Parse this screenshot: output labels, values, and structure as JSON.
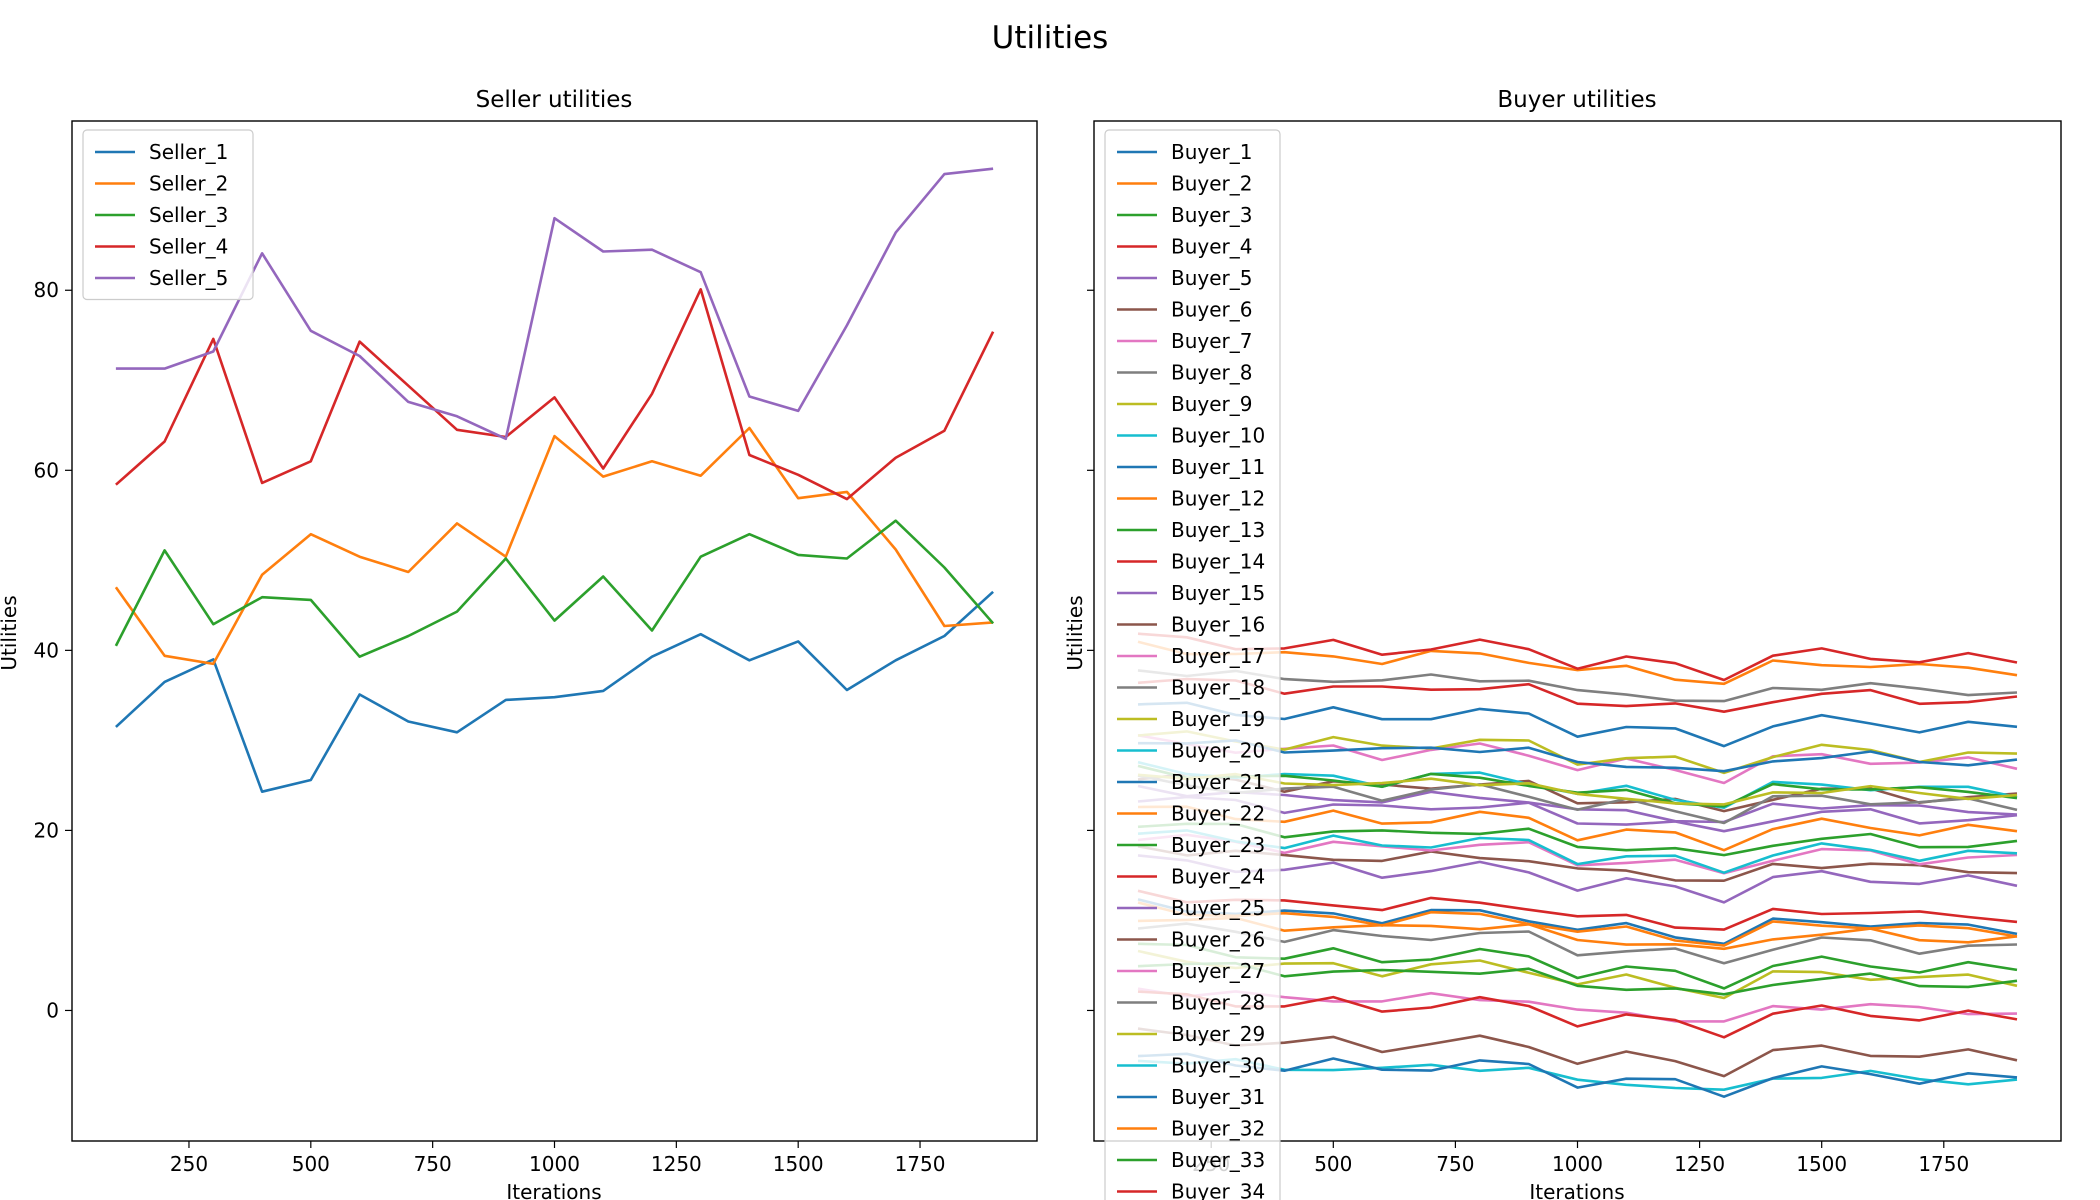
{
  "figure": {
    "suptitle": "Utilities"
  },
  "chart_data": [
    {
      "type": "line",
      "title": "Seller utilities",
      "xlabel": "Iterations",
      "ylabel": "Utilities",
      "xlim": [
        10,
        1990
      ],
      "ylim": [
        -14.5,
        98.8
      ],
      "xticks": [
        250,
        500,
        750,
        1000,
        1250,
        1500,
        1750
      ],
      "yticks": [
        0,
        20,
        40,
        60,
        80
      ],
      "legend": "upper-left",
      "x": [
        100,
        200,
        300,
        400,
        500,
        600,
        700,
        800,
        900,
        1000,
        1100,
        1200,
        1300,
        1400,
        1500,
        1600,
        1700,
        1800,
        1900
      ],
      "series": [
        {
          "name": "Seller_1",
          "color": "#1f77b4",
          "values": [
            31.5,
            36.5,
            39.0,
            24.3,
            25.6,
            35.1,
            32.1,
            30.9,
            34.5,
            34.8,
            35.5,
            39.3,
            41.8,
            38.9,
            41.0,
            35.6,
            38.9,
            41.6,
            46.5
          ]
        },
        {
          "name": "Seller_2",
          "color": "#ff7f0e",
          "values": [
            47.0,
            39.4,
            38.5,
            48.4,
            52.9,
            50.4,
            48.7,
            54.1,
            50.4,
            63.8,
            59.3,
            61.0,
            59.4,
            64.7,
            56.9,
            57.6,
            51.2,
            42.7,
            43.1
          ]
        },
        {
          "name": "Seller_3",
          "color": "#2ca02c",
          "values": [
            40.5,
            51.1,
            42.9,
            45.9,
            45.6,
            39.3,
            41.6,
            44.3,
            50.2,
            43.3,
            48.2,
            42.2,
            50.4,
            52.9,
            50.6,
            50.2,
            54.4,
            49.2,
            43.0
          ]
        },
        {
          "name": "Seller_4",
          "color": "#d62728",
          "values": [
            58.4,
            63.2,
            74.6,
            58.6,
            61.0,
            74.3,
            69.4,
            64.5,
            63.7,
            68.1,
            60.2,
            68.5,
            80.1,
            61.7,
            59.5,
            56.8,
            61.4,
            64.4,
            75.4
          ]
        },
        {
          "name": "Seller_5",
          "color": "#9467bd",
          "values": [
            71.3,
            71.3,
            73.2,
            84.1,
            75.5,
            72.7,
            67.6,
            66.0,
            63.5,
            88.0,
            84.3,
            84.5,
            82.0,
            68.2,
            66.6,
            76.1,
            86.4,
            92.9,
            93.5
          ]
        }
      ]
    },
    {
      "type": "line",
      "title": "Buyer utilities",
      "xlabel": "Iterations",
      "ylabel": "Utilities",
      "xlim": [
        10,
        1990
      ],
      "ylim": [
        -14.5,
        98.8
      ],
      "xticks": [
        250,
        500,
        750,
        1000,
        1250,
        1500,
        1750
      ],
      "yticks": [
        0,
        20,
        40,
        60,
        80
      ],
      "legend": "upper-left",
      "x": [
        100,
        200,
        300,
        400,
        500,
        600,
        700,
        800,
        900,
        1000,
        1100,
        1200,
        1300,
        1400,
        1500,
        1600,
        1700,
        1800,
        1900
      ],
      "series": [
        {
          "name": "Buyer_1",
          "color": "#1f77b4",
          "base": 34.0
        },
        {
          "name": "Buyer_2",
          "color": "#ff7f0e",
          "base": 40.5
        },
        {
          "name": "Buyer_3",
          "color": "#2ca02c",
          "base": 21.0
        },
        {
          "name": "Buyer_4",
          "color": "#d62728",
          "base": 41.5
        },
        {
          "name": "Buyer_5",
          "color": "#9467bd",
          "base": 24.8
        },
        {
          "name": "Buyer_6",
          "color": "#8c564b",
          "base": 26.2
        },
        {
          "name": "Buyer_7",
          "color": "#e377c2",
          "base": 30.0
        },
        {
          "name": "Buyer_8",
          "color": "#7f7f7f",
          "base": 38.0
        },
        {
          "name": "Buyer_9",
          "color": "#bcbd22",
          "base": 30.8
        },
        {
          "name": "Buyer_10",
          "color": "#17becf",
          "base": 27.0
        },
        {
          "name": "Buyer_11",
          "color": "#1f77b4",
          "base": 30.2
        },
        {
          "name": "Buyer_12",
          "color": "#ff7f0e",
          "base": 22.5
        },
        {
          "name": "Buyer_13",
          "color": "#2ca02c",
          "base": 26.8
        },
        {
          "name": "Buyer_14",
          "color": "#d62728",
          "base": 37.0
        },
        {
          "name": "Buyer_15",
          "color": "#9467bd",
          "base": 16.8
        },
        {
          "name": "Buyer_16",
          "color": "#8c564b",
          "base": 18.2
        },
        {
          "name": "Buyer_17",
          "color": "#e377c2",
          "base": 19.4
        },
        {
          "name": "Buyer_18",
          "color": "#7f7f7f",
          "base": 25.5
        },
        {
          "name": "Buyer_19",
          "color": "#bcbd22",
          "base": 26.5
        },
        {
          "name": "Buyer_20",
          "color": "#17becf",
          "base": 19.8
        },
        {
          "name": "Buyer_21",
          "color": "#1f77b4",
          "base": 11.8
        },
        {
          "name": "Buyer_22",
          "color": "#ff7f0e",
          "base": 10.5
        },
        {
          "name": "Buyer_23",
          "color": "#2ca02c",
          "base": 7.2
        },
        {
          "name": "Buyer_24",
          "color": "#d62728",
          "base": 13.0
        },
        {
          "name": "Buyer_25",
          "color": "#9467bd",
          "base": 23.8
        },
        {
          "name": "Buyer_26",
          "color": "#8c564b",
          "base": -2.5
        },
        {
          "name": "Buyer_27",
          "color": "#e377c2",
          "base": 2.5
        },
        {
          "name": "Buyer_28",
          "color": "#7f7f7f",
          "base": 9.5
        },
        {
          "name": "Buyer_29",
          "color": "#bcbd22",
          "base": 6.0
        },
        {
          "name": "Buyer_30",
          "color": "#17becf",
          "base": -5.2
        },
        {
          "name": "Buyer_31",
          "color": "#1f77b4",
          "base": -5.0
        },
        {
          "name": "Buyer_32",
          "color": "#ff7f0e",
          "base": 11.5
        },
        {
          "name": "Buyer_33",
          "color": "#2ca02c",
          "base": 5.5
        },
        {
          "name": "Buyer_34",
          "color": "#d62728",
          "base": 1.8
        }
      ],
      "shared_offsets": [
        0.0,
        -0.4,
        -0.8,
        -1.3,
        -0.9,
        -1.6,
        -1.1,
        -0.9,
        -1.3,
        -3.0,
        -2.6,
        -3.2,
        -4.2,
        -2.2,
        -1.8,
        -2.0,
        -2.6,
        -2.4,
        -2.7
      ]
    }
  ]
}
